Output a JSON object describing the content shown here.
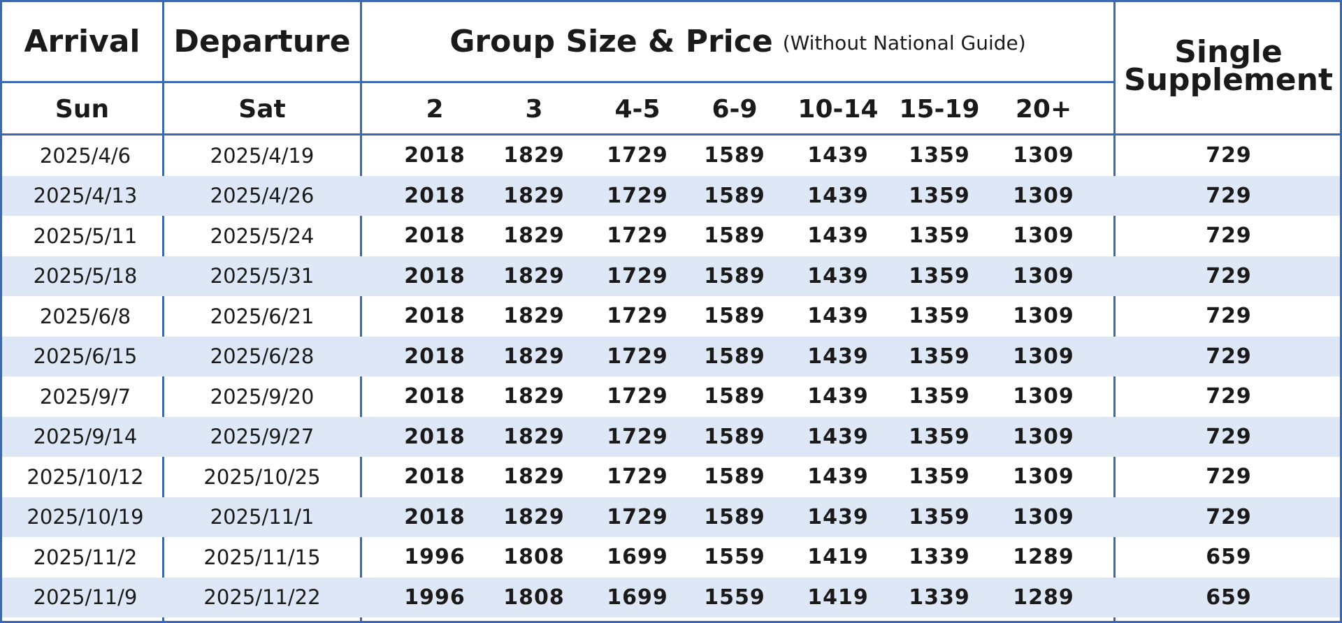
{
  "header": {
    "arrival": "Arrival",
    "departure": "Departure",
    "group_title": "Group Size & Price",
    "group_note": "(Without National Guide)",
    "single_line1": "Single",
    "single_line2": "Supplement",
    "arrival_day": "Sun",
    "departure_day": "Sat",
    "group_sizes": [
      "2",
      "3",
      "4-5",
      "6-9",
      "10-14",
      "15-19",
      "20+"
    ]
  },
  "colors": {
    "border": "#3b68b0",
    "alt_row": "#dde7f6"
  },
  "rows": [
    {
      "arrival": "2025/4/6",
      "departure": "2025/4/19",
      "prices": [
        "2018",
        "1829",
        "1729",
        "1589",
        "1439",
        "1359",
        "1309"
      ],
      "single": "729"
    },
    {
      "arrival": "2025/4/13",
      "departure": "2025/4/26",
      "prices": [
        "2018",
        "1829",
        "1729",
        "1589",
        "1439",
        "1359",
        "1309"
      ],
      "single": "729"
    },
    {
      "arrival": "2025/5/11",
      "departure": "2025/5/24",
      "prices": [
        "2018",
        "1829",
        "1729",
        "1589",
        "1439",
        "1359",
        "1309"
      ],
      "single": "729"
    },
    {
      "arrival": "2025/5/18",
      "departure": "2025/5/31",
      "prices": [
        "2018",
        "1829",
        "1729",
        "1589",
        "1439",
        "1359",
        "1309"
      ],
      "single": "729"
    },
    {
      "arrival": "2025/6/8",
      "departure": "2025/6/21",
      "prices": [
        "2018",
        "1829",
        "1729",
        "1589",
        "1439",
        "1359",
        "1309"
      ],
      "single": "729"
    },
    {
      "arrival": "2025/6/15",
      "departure": "2025/6/28",
      "prices": [
        "2018",
        "1829",
        "1729",
        "1589",
        "1439",
        "1359",
        "1309"
      ],
      "single": "729"
    },
    {
      "arrival": "2025/9/7",
      "departure": "2025/9/20",
      "prices": [
        "2018",
        "1829",
        "1729",
        "1589",
        "1439",
        "1359",
        "1309"
      ],
      "single": "729"
    },
    {
      "arrival": "2025/9/14",
      "departure": "2025/9/27",
      "prices": [
        "2018",
        "1829",
        "1729",
        "1589",
        "1439",
        "1359",
        "1309"
      ],
      "single": "729"
    },
    {
      "arrival": "2025/10/12",
      "departure": "2025/10/25",
      "prices": [
        "2018",
        "1829",
        "1729",
        "1589",
        "1439",
        "1359",
        "1309"
      ],
      "single": "729"
    },
    {
      "arrival": "2025/10/19",
      "departure": "2025/11/1",
      "prices": [
        "2018",
        "1829",
        "1729",
        "1589",
        "1439",
        "1359",
        "1309"
      ],
      "single": "729"
    },
    {
      "arrival": "2025/11/2",
      "departure": "2025/11/15",
      "prices": [
        "1996",
        "1808",
        "1699",
        "1559",
        "1419",
        "1339",
        "1289"
      ],
      "single": "659"
    },
    {
      "arrival": "2025/11/9",
      "departure": "2025/11/22",
      "prices": [
        "1996",
        "1808",
        "1699",
        "1559",
        "1419",
        "1339",
        "1289"
      ],
      "single": "659"
    }
  ]
}
